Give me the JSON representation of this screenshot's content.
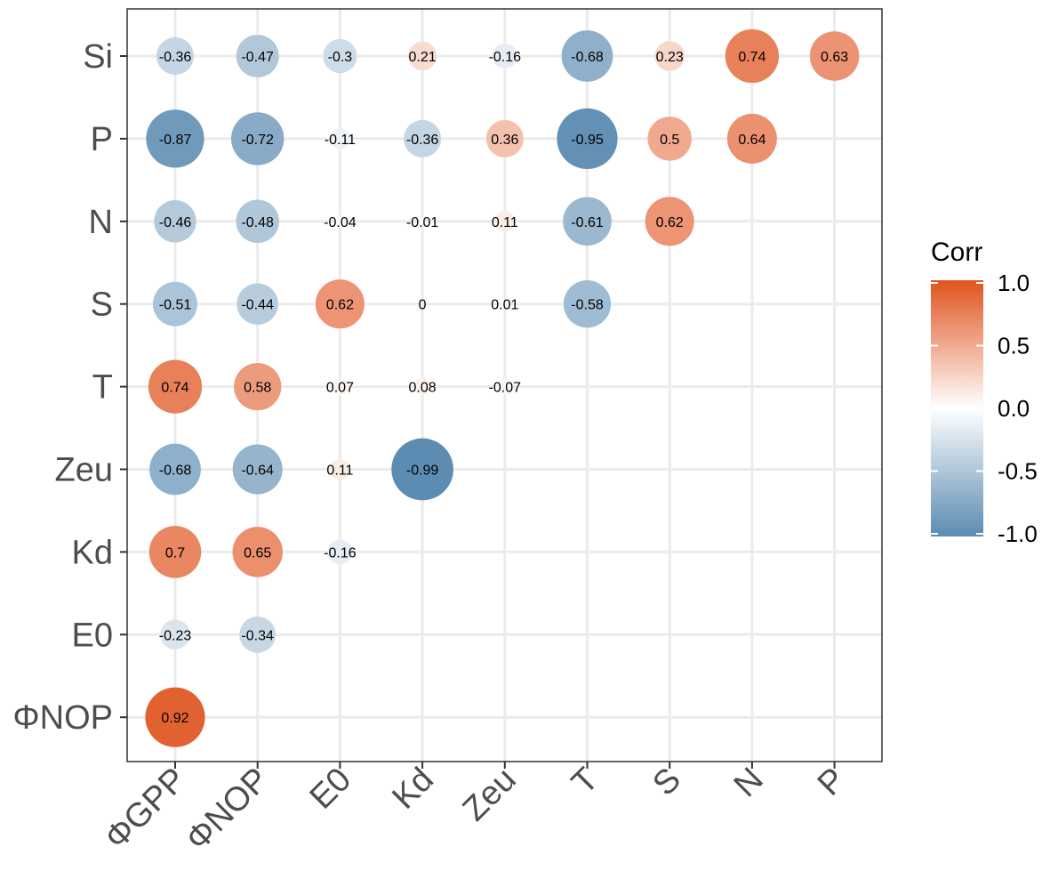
{
  "chart_data": {
    "type": "heatmap",
    "title": "",
    "xlabel": "",
    "ylabel": "",
    "x_labels": [
      "ΦGPP",
      "ΦNOP",
      "E0",
      "Kd",
      "Zeu",
      "T",
      "S",
      "N",
      "P"
    ],
    "y_labels": [
      "Si",
      "P",
      "N",
      "S",
      "T",
      "Zeu",
      "Kd",
      "E0",
      "ΦNOP"
    ],
    "values": [
      [
        -0.36,
        -0.47,
        -0.3,
        0.21,
        -0.16,
        -0.68,
        0.23,
        0.74,
        0.63
      ],
      [
        -0.87,
        -0.72,
        -0.11,
        -0.36,
        0.36,
        -0.95,
        0.5,
        0.64,
        null
      ],
      [
        -0.46,
        -0.48,
        -0.04,
        -0.01,
        0.11,
        -0.61,
        0.62,
        null,
        null
      ],
      [
        -0.51,
        -0.44,
        0.62,
        0,
        0.01,
        -0.58,
        null,
        null,
        null
      ],
      [
        0.74,
        0.58,
        0.07,
        0.08,
        -0.07,
        null,
        null,
        null,
        null
      ],
      [
        -0.68,
        -0.64,
        0.11,
        -0.99,
        null,
        null,
        null,
        null,
        null
      ],
      [
        0.7,
        0.65,
        -0.16,
        null,
        null,
        null,
        null,
        null,
        null
      ],
      [
        -0.23,
        -0.34,
        null,
        null,
        null,
        null,
        null,
        null,
        null
      ],
      [
        0.92,
        null,
        null,
        null,
        null,
        null,
        null,
        null,
        null
      ]
    ],
    "legend": {
      "title": "Corr",
      "ticks": [
        "1.0",
        "0.5",
        "0.0",
        "-0.5",
        "-1.0"
      ],
      "range": [
        -1,
        1
      ],
      "position": "right"
    },
    "colors": {
      "high": "#E0531F",
      "mid": "#FFFFFF",
      "low": "#5B8BB1",
      "grid": "#EBEBEB",
      "border": "#333333",
      "tick_text": "#4D4D4D"
    }
  }
}
